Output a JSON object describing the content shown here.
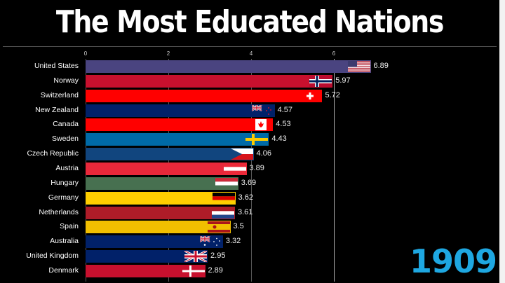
{
  "chart_data": {
    "type": "bar",
    "orientation": "horizontal",
    "title": "The Most Educated Nations",
    "year": "1909",
    "xlabel": "",
    "ylabel": "",
    "xlim": [
      0,
      7.2
    ],
    "ticks": [
      "0",
      "2",
      "4",
      "6"
    ],
    "grid": true,
    "categories": [
      "United States",
      "Norway",
      "Switzerland",
      "New Zealand",
      "Canada",
      "Sweden",
      "Czech Republic",
      "Austria",
      "Hungary",
      "Germany",
      "Netherlands",
      "Spain",
      "Australia",
      "United Kingdom",
      "Denmark"
    ],
    "values": [
      6.89,
      5.97,
      5.72,
      4.57,
      4.53,
      4.43,
      4.06,
      3.89,
      3.69,
      3.62,
      3.61,
      3.5,
      3.32,
      2.95,
      2.89
    ],
    "value_labels": [
      "6.89",
      "5.97",
      "5.72",
      "4.57",
      "4.53",
      "4.43",
      "4.06",
      "3.89",
      "3.69",
      "3.62",
      "3.61",
      "3.5",
      "3.32",
      "2.95",
      "2.89"
    ],
    "colors": [
      "#4a4480",
      "#c8102e",
      "#ff0000",
      "#012169",
      "#ff0000",
      "#006aa7",
      "#11457e",
      "#e8283a",
      "#477050",
      "#ffce00",
      "#ae1c28",
      "#f1bf00",
      "#012169",
      "#012169",
      "#c8102e"
    ],
    "flags": [
      "us",
      "no",
      "ch",
      "nz",
      "ca",
      "se",
      "cz",
      "at",
      "hu",
      "de",
      "nl",
      "es",
      "au",
      "gb",
      "dk"
    ]
  },
  "header": {
    "title": "The Most Educated Nations"
  },
  "year_label": "1909"
}
